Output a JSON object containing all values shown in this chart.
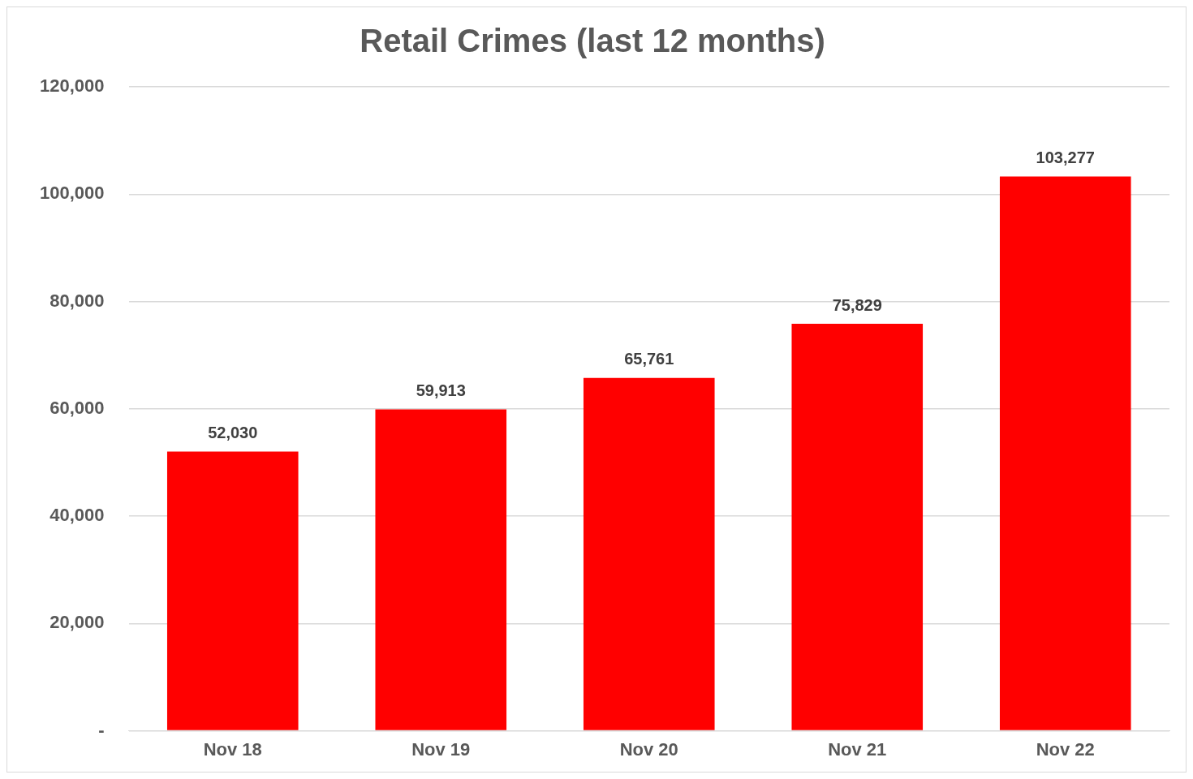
{
  "chart_data": {
    "type": "bar",
    "title": "Retail Crimes (last 12 months)",
    "categories": [
      "Nov 18",
      "Nov 19",
      "Nov 20",
      "Nov 21",
      "Nov 22"
    ],
    "values": [
      52030,
      59913,
      65761,
      75829,
      103277
    ],
    "value_labels": [
      "52,030",
      "59,913",
      "65,761",
      "75,829",
      "103,277"
    ],
    "color": "#ff0000",
    "ylim": [
      0,
      120000
    ],
    "yticks": [
      {
        "value": 0,
        "label": "-"
      },
      {
        "value": 20000,
        "label": "20,000"
      },
      {
        "value": 40000,
        "label": "40,000"
      },
      {
        "value": 60000,
        "label": "60,000"
      },
      {
        "value": 80000,
        "label": "80,000"
      },
      {
        "value": 100000,
        "label": "100,000"
      },
      {
        "value": 120000,
        "label": "120,000"
      }
    ],
    "grid": "y",
    "legend": false
  }
}
